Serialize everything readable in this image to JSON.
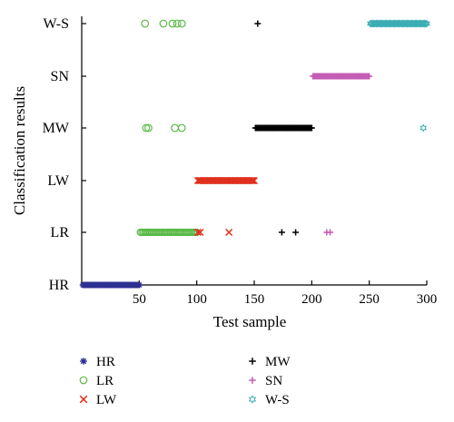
{
  "chart_data": {
    "type": "scatter",
    "title": "",
    "xlabel": "Test sample",
    "ylabel": "Classification results",
    "xlim": [
      0,
      300
    ],
    "x_ticks": [
      50,
      100,
      150,
      200,
      250,
      300
    ],
    "categories": [
      "HR",
      "LR",
      "LW",
      "MW",
      "SN",
      "W-S"
    ],
    "grid": false,
    "legend_position": "bottom",
    "series": [
      {
        "name": "HR",
        "marker": "asterisk",
        "color": "#2e3192",
        "points": [
          {
            "x_range": [
              1,
              50
            ],
            "y": "HR"
          }
        ]
      },
      {
        "name": "LR",
        "marker": "circle",
        "color": "#5ab947",
        "points": [
          {
            "x_range": [
              51,
              100
            ],
            "y": "LR"
          },
          {
            "x": 55,
            "y": "W-S"
          },
          {
            "x": 71,
            "y": "W-S"
          },
          {
            "x": 79,
            "y": "W-S"
          },
          {
            "x": 83,
            "y": "W-S"
          },
          {
            "x": 87,
            "y": "W-S"
          },
          {
            "x": 56,
            "y": "MW"
          },
          {
            "x": 58,
            "y": "MW"
          },
          {
            "x": 81,
            "y": "MW"
          },
          {
            "x": 87,
            "y": "MW"
          }
        ]
      },
      {
        "name": "LW",
        "marker": "x",
        "color": "#e0301e",
        "points": [
          {
            "x_range": [
              101,
              150
            ],
            "y": "LW"
          },
          {
            "x": 101,
            "y": "LR"
          },
          {
            "x": 103,
            "y": "LR"
          },
          {
            "x": 128,
            "y": "LR"
          }
        ]
      },
      {
        "name": "MW",
        "marker": "plus",
        "color": "#000000",
        "points": [
          {
            "x_range": [
              151,
              200
            ],
            "y": "MW"
          },
          {
            "x": 153,
            "y": "W-S"
          },
          {
            "x": 174,
            "y": "LR"
          },
          {
            "x": 186,
            "y": "LR"
          }
        ]
      },
      {
        "name": "SN",
        "marker": "plus",
        "color": "#c45cb5",
        "points": [
          {
            "x_range": [
              201,
              250
            ],
            "y": "SN"
          },
          {
            "x": 213,
            "y": "LR"
          },
          {
            "x": 216,
            "y": "LR"
          }
        ]
      },
      {
        "name": "W-S",
        "marker": "star",
        "color": "#3aacb4",
        "points": [
          {
            "x_range": [
              251,
              300
            ],
            "y": "W-S"
          },
          {
            "x": 297,
            "y": "MW"
          }
        ]
      }
    ]
  }
}
